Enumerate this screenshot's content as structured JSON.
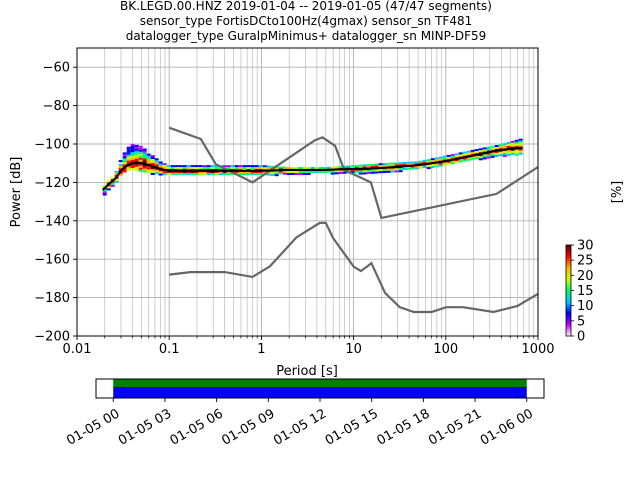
{
  "title_lines": [
    "BK.LEGD.00.HNZ   2019-01-04 -- 2019-01-05  (47/47 segments)",
    "sensor_type FortisDCto100Hz(4gmax) sensor_sn TF481",
    "datalogger_type GuralpMinimus+ datalogger_sn MINP-DF59"
  ],
  "chart_data": [
    {
      "type": "heatmap",
      "xlabel": "Period [s]",
      "ylabel": "Power [dB]",
      "xscale": "log",
      "xlim": [
        0.01,
        1000
      ],
      "ylim": [
        -200,
        -50
      ],
      "x_ticks": [
        0.01,
        0.1,
        1,
        10,
        100,
        1000
      ],
      "x_tick_labels": [
        "0.01",
        "0.1",
        "1",
        "10",
        "100",
        "1000"
      ],
      "y_ticks": [
        -200,
        -180,
        -160,
        -140,
        -120,
        -100,
        -80,
        -60
      ],
      "y_tick_labels": [
        "−200",
        "−180",
        "−160",
        "−140",
        "−120",
        "−100",
        "−80",
        "−60"
      ],
      "grid": true,
      "colorbar": {
        "label": "[%]",
        "range": [
          0,
          30
        ],
        "ticks": [
          "0",
          "5",
          "10",
          "15",
          "20",
          "25",
          "30"
        ],
        "colors": [
          "#ffffff",
          "#bf00ff",
          "#0000ff",
          "#00c8ff",
          "#00ff64",
          "#c8ff00",
          "#ffb400",
          "#ff0000",
          "#550000"
        ]
      },
      "mode_curve": {
        "name": "mode",
        "x": [
          0.019,
          0.022,
          0.026,
          0.03,
          0.035,
          0.04,
          0.05,
          0.06,
          0.08,
          0.1,
          0.2,
          0.5,
          1,
          2,
          5,
          10,
          20,
          50,
          100,
          200,
          400,
          680
        ],
        "y": [
          -124,
          -121,
          -118,
          -114,
          -111,
          -110,
          -110,
          -111,
          -113,
          -114,
          -114,
          -114,
          -114,
          -113.5,
          -113.5,
          -113,
          -112.5,
          -111,
          -109,
          -106,
          -103,
          -102
        ]
      },
      "noise_models": [
        {
          "name": "high-noise-model",
          "x": [
            0.1,
            0.22,
            0.32,
            0.8,
            3.8,
            4.6,
            6.3,
            7.9,
            15.4,
            20,
            354.8,
            1000
          ],
          "y": [
            -91.5,
            -97.4,
            -110.5,
            -120,
            -98,
            -96.5,
            -101,
            -113.5,
            -120,
            -138.5,
            -126,
            -112
          ]
        },
        {
          "name": "low-noise-model",
          "x": [
            0.1,
            0.17,
            0.4,
            0.8,
            1.24,
            2.4,
            4.3,
            5,
            6,
            10,
            12,
            15.6,
            21.9,
            31.6,
            45,
            70,
            101,
            154,
            328,
            600,
            1000
          ],
          "y": [
            -168,
            -166.7,
            -166.7,
            -169.2,
            -163.7,
            -148.6,
            -141.1,
            -141.1,
            -149,
            -163.8,
            -166.2,
            -162.1,
            -177.5,
            -185,
            -187.5,
            -187.5,
            -185,
            -185,
            -187.5,
            -184.4,
            -178
          ]
        }
      ],
      "density_envelope": {
        "x": [
          0.019,
          0.022,
          0.026,
          0.03,
          0.035,
          0.04,
          0.05,
          0.06,
          0.08,
          0.1,
          0.2,
          0.5,
          1,
          2,
          5,
          10,
          20,
          50,
          100,
          200,
          400,
          680
        ],
        "upper": [
          -123,
          -119,
          -116,
          -108,
          -102,
          -100,
          -101,
          -104,
          -109,
          -111,
          -111,
          -111,
          -111,
          -112,
          -112,
          -111,
          -110,
          -109,
          -106,
          -103,
          -100,
          -97
        ],
        "lower": [
          -127,
          -124,
          -121,
          -116,
          -114,
          -113,
          -114,
          -115,
          -116,
          -116,
          -116,
          -116,
          -116,
          -115.5,
          -115,
          -115,
          -115,
          -113,
          -111,
          -108,
          -106,
          -105
        ]
      }
    },
    {
      "type": "timeline",
      "x_tick_labels": [
        "01-05 00",
        "01-05 03",
        "01-05 06",
        "01-05 09",
        "01-05 12",
        "01-05 15",
        "01-05 18",
        "01-05 21",
        "01-06 00"
      ],
      "xlim": [
        "2019-01-04 23:00",
        "2019-01-06 01:00"
      ],
      "bars": [
        {
          "color": "#008000",
          "start": "2019-01-05 00:00",
          "end": "2019-01-06 00:00"
        },
        {
          "color": "#0000ff",
          "start": "2019-01-05 00:00",
          "end": "2019-01-06 00:00"
        }
      ]
    }
  ]
}
